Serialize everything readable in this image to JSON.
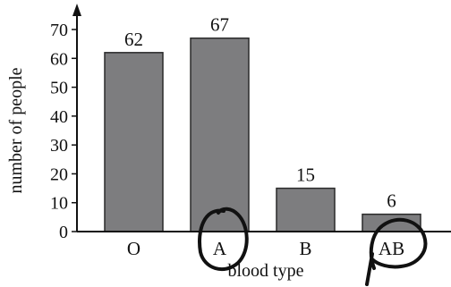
{
  "chart_data": {
    "type": "bar",
    "categories": [
      "O",
      "A",
      "B",
      "AB"
    ],
    "values": [
      62,
      67,
      15,
      6
    ],
    "data_labels": [
      "62",
      "67",
      "15",
      "6"
    ],
    "xlabel": "blood type",
    "ylabel": "number of people",
    "ylim": [
      0,
      70
    ],
    "yticks": [
      "0",
      "10",
      "20",
      "30",
      "40",
      "50",
      "60",
      "70"
    ],
    "grid": false,
    "legend": "none",
    "colors": {
      "bar_fill": "#7d7d7f",
      "bar_stroke": "#2a2a2a",
      "axis": "#111111",
      "annotation_ink": "#111111"
    },
    "annotations": [
      "hand-drawn circle around A",
      "hand-drawn circle around AB"
    ]
  }
}
